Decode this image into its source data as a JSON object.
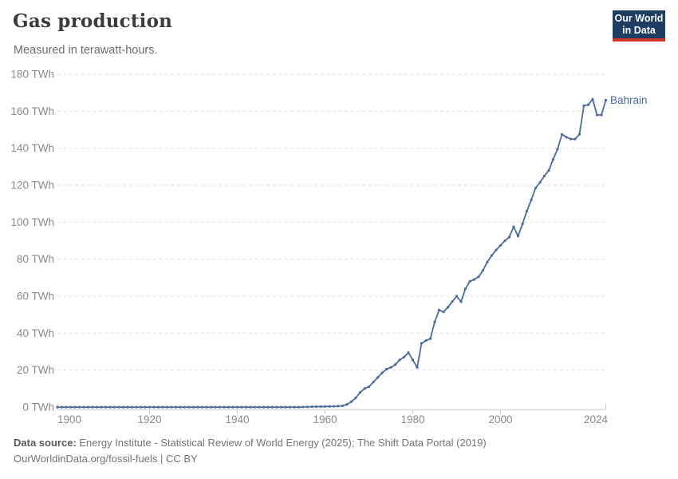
{
  "header": {
    "title": "Gas production",
    "subtitle": "Measured in terawatt-hours."
  },
  "logo": {
    "line1": "Our World",
    "line2": "in Data"
  },
  "footer": {
    "source_label": "Data source:",
    "source_text": " Energy Institute - Statistical Review of World Energy (2025); The Shift Data Portal (2019)",
    "license": "OurWorldinData.org/fossil-fuels | CC BY"
  },
  "colors": {
    "line": "#4c6a9c",
    "grid": "#dcdcdc",
    "axis": "#c9c9c9",
    "tick_label": "#8a8a8a",
    "title": "#3b3b3b",
    "logo_navy": "#1d3d63",
    "logo_red": "#d0342c"
  },
  "chart_data": {
    "type": "line",
    "title": "Gas production",
    "subtitle": "Measured in terawatt-hours.",
    "xlabel": "",
    "ylabel": "TWh",
    "unit": "TWh",
    "xlim": [
      1899,
      2024
    ],
    "ylim": [
      0,
      180
    ],
    "xticks": [
      1900,
      1920,
      1940,
      1960,
      1980,
      2000,
      2024
    ],
    "yticks": [
      0,
      20,
      40,
      60,
      80,
      100,
      120,
      140,
      160,
      180
    ],
    "ytick_suffix": " TWh",
    "grid": true,
    "legend_position": "end-of-line",
    "line_color": "#4c6a9c",
    "series": [
      {
        "name": "Bahrain",
        "start_year": 1899,
        "end_year": 2024,
        "values": [
          0,
          0,
          0,
          0,
          0,
          0,
          0,
          0,
          0,
          0,
          0,
          0,
          0,
          0,
          0,
          0,
          0,
          0,
          0,
          0,
          0,
          0,
          0,
          0,
          0,
          0,
          0,
          0,
          0,
          0,
          0,
          0,
          0,
          0,
          0,
          0,
          0,
          0,
          0,
          0,
          0,
          0,
          0,
          0,
          0,
          0,
          0,
          0,
          0,
          0,
          0,
          0,
          0,
          0,
          0,
          0,
          0.1,
          0.15,
          0.2,
          0.25,
          0.3,
          0.35,
          0.4,
          0.45,
          0.55,
          0.7,
          1.5,
          3,
          5,
          8,
          10,
          11,
          13.5,
          16,
          18.5,
          20.5,
          21.5,
          23,
          25.5,
          27,
          29.5,
          25.5,
          21.5,
          34.5,
          36,
          37,
          46,
          52.5,
          51.5,
          54,
          57,
          60,
          57,
          64,
          68,
          69,
          70.5,
          74,
          78.5,
          82,
          85,
          87.5,
          90,
          92,
          97.5,
          92.5,
          99,
          106,
          112,
          118.5,
          121.5,
          125,
          128,
          134,
          139.5,
          147.5,
          146,
          145,
          145,
          147.5,
          163,
          163.5,
          166.5,
          158,
          158,
          166
        ]
      }
    ]
  }
}
